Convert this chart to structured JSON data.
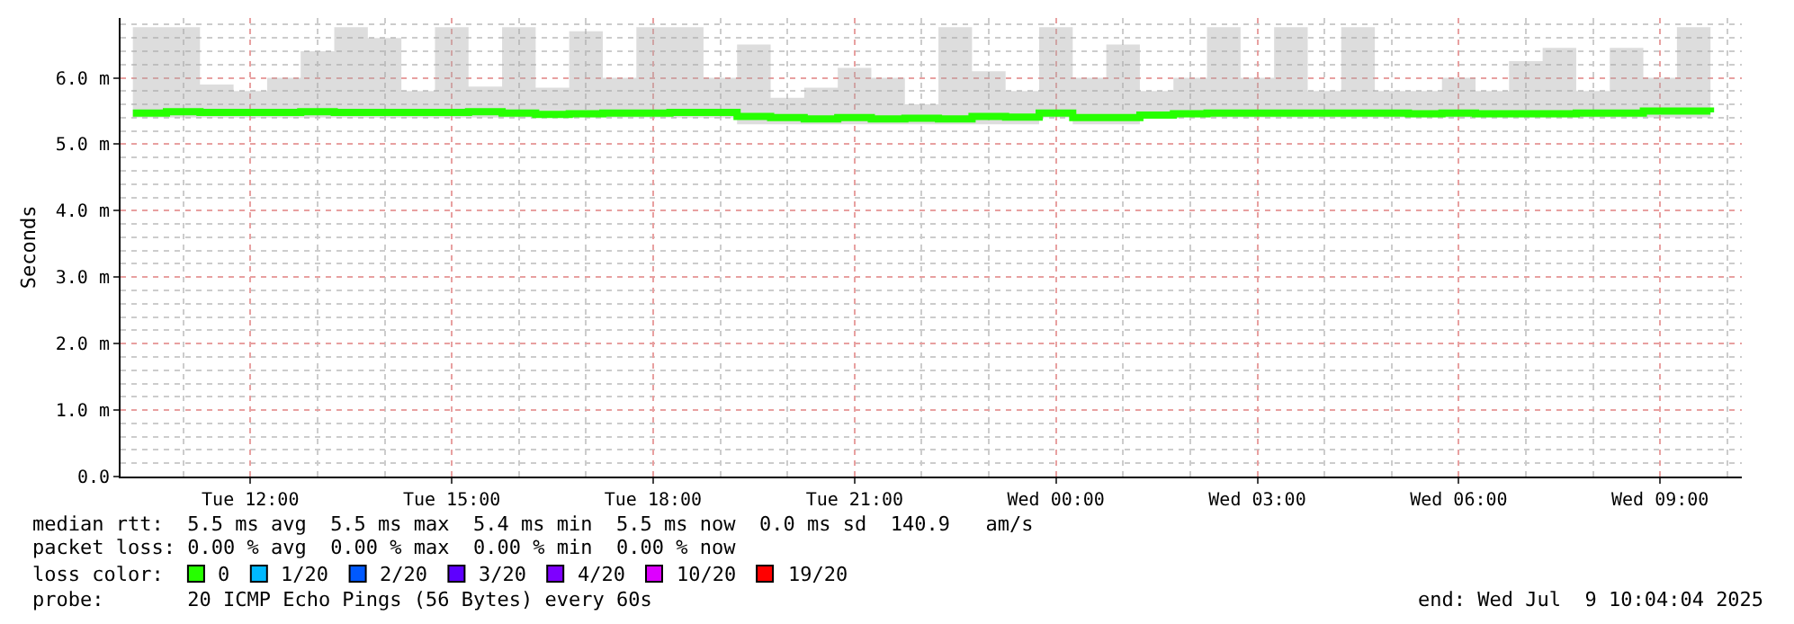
{
  "chart_data": {
    "type": "step",
    "ylabel": "Seconds",
    "legend_title": "loss color:",
    "legend": "bottom",
    "grid": true,
    "x": [
      "2025-07-08T10:15",
      "2025-07-08T10:45",
      "2025-07-08T11:15",
      "2025-07-08T11:45",
      "2025-07-08T12:15",
      "2025-07-08T12:45",
      "2025-07-08T13:15",
      "2025-07-08T13:45",
      "2025-07-08T14:15",
      "2025-07-08T14:45",
      "2025-07-08T15:15",
      "2025-07-08T15:45",
      "2025-07-08T16:15",
      "2025-07-08T16:45",
      "2025-07-08T17:15",
      "2025-07-08T17:45",
      "2025-07-08T18:15",
      "2025-07-08T18:45",
      "2025-07-08T19:15",
      "2025-07-08T19:45",
      "2025-07-08T20:15",
      "2025-07-08T20:45",
      "2025-07-08T21:15",
      "2025-07-08T21:45",
      "2025-07-08T22:15",
      "2025-07-08T22:45",
      "2025-07-08T23:15",
      "2025-07-08T23:45",
      "2025-07-09T00:15",
      "2025-07-09T00:45",
      "2025-07-09T01:15",
      "2025-07-09T01:45",
      "2025-07-09T02:15",
      "2025-07-09T02:45",
      "2025-07-09T03:15",
      "2025-07-09T03:45",
      "2025-07-09T04:15",
      "2025-07-09T04:45",
      "2025-07-09T05:15",
      "2025-07-09T05:45",
      "2025-07-09T06:15",
      "2025-07-09T06:45",
      "2025-07-09T07:15",
      "2025-07-09T07:45",
      "2025-07-09T08:15",
      "2025-07-09T08:45",
      "2025-07-09T09:15",
      "2025-07-09T09:45"
    ],
    "series": [
      {
        "name": "0",
        "color": "#26ff00",
        "values": [
          5.47,
          5.49,
          5.48,
          5.48,
          5.48,
          5.49,
          5.48,
          5.48,
          5.48,
          5.48,
          5.49,
          5.47,
          5.45,
          5.46,
          5.47,
          5.47,
          5.48,
          5.48,
          5.42,
          5.4,
          5.38,
          5.4,
          5.38,
          5.39,
          5.38,
          5.42,
          5.41,
          5.47,
          5.4,
          5.4,
          5.44,
          5.46,
          5.47,
          5.47,
          5.47,
          5.47,
          5.47,
          5.47,
          5.46,
          5.47,
          5.46,
          5.46,
          5.46,
          5.47,
          5.47,
          5.5,
          5.5,
          5.48
        ],
        "lower": [
          5.4,
          5.4,
          5.4,
          5.4,
          5.4,
          5.4,
          5.4,
          5.4,
          5.4,
          5.4,
          5.4,
          5.4,
          5.4,
          5.4,
          5.4,
          5.4,
          5.4,
          5.4,
          5.3,
          5.3,
          5.3,
          5.3,
          5.3,
          5.3,
          5.3,
          5.3,
          5.3,
          5.4,
          5.3,
          5.3,
          5.4,
          5.4,
          5.4,
          5.4,
          5.4,
          5.4,
          5.4,
          5.4,
          5.4,
          5.4,
          5.4,
          5.4,
          5.4,
          5.4,
          5.4,
          5.4,
          5.4,
          5.4
        ],
        "upper": [
          6.76,
          6.76,
          5.9,
          5.8,
          6.0,
          6.4,
          6.76,
          6.6,
          5.8,
          6.76,
          5.87,
          6.76,
          5.85,
          6.7,
          6.0,
          6.76,
          6.76,
          6.0,
          6.5,
          5.7,
          5.85,
          6.15,
          6.0,
          5.6,
          6.76,
          6.1,
          5.8,
          6.76,
          6.0,
          6.5,
          5.8,
          6.0,
          6.76,
          6.0,
          6.76,
          5.8,
          6.76,
          5.8,
          5.8,
          6.0,
          5.8,
          6.25,
          6.45,
          5.8,
          6.45,
          6.0,
          6.76,
          5.8
        ]
      },
      {
        "name": "1/20",
        "color": "#00b8ff",
        "values": [
          null,
          null,
          null,
          null,
          null,
          null,
          null,
          null,
          null,
          null,
          null,
          null,
          null,
          null,
          null,
          null,
          null,
          null,
          null,
          null,
          null,
          null,
          null,
          null,
          null,
          null,
          null,
          null,
          null,
          null,
          null,
          null,
          null,
          null,
          null,
          null,
          null,
          null,
          null,
          null,
          null,
          null,
          null,
          null,
          null,
          null,
          null,
          null
        ]
      },
      {
        "name": "2/20",
        "color": "#0059ff",
        "values": [
          null,
          null,
          null,
          null,
          null,
          null,
          null,
          null,
          null,
          null,
          null,
          null,
          null,
          null,
          null,
          null,
          null,
          null,
          null,
          null,
          null,
          null,
          null,
          null,
          null,
          null,
          null,
          null,
          null,
          null,
          null,
          null,
          null,
          null,
          null,
          null,
          null,
          null,
          null,
          null,
          null,
          null,
          null,
          null,
          null,
          null,
          null,
          null
        ]
      },
      {
        "name": "3/20",
        "color": "#5e00ff",
        "values": [
          null,
          null,
          null,
          null,
          null,
          null,
          null,
          null,
          null,
          null,
          null,
          null,
          null,
          null,
          null,
          null,
          null,
          null,
          null,
          null,
          null,
          null,
          null,
          null,
          null,
          null,
          null,
          null,
          null,
          null,
          null,
          null,
          null,
          null,
          null,
          null,
          null,
          null,
          null,
          null,
          null,
          null,
          null,
          null,
          null,
          null,
          null,
          null
        ]
      },
      {
        "name": "4/20",
        "color": "#7e00ff",
        "values": [
          null,
          null,
          null,
          null,
          null,
          null,
          null,
          null,
          null,
          null,
          null,
          null,
          null,
          null,
          null,
          null,
          null,
          null,
          null,
          null,
          null,
          null,
          null,
          null,
          null,
          null,
          null,
          null,
          null,
          null,
          null,
          null,
          null,
          null,
          null,
          null,
          null,
          null,
          null,
          null,
          null,
          null,
          null,
          null,
          null,
          null,
          null,
          null
        ]
      },
      {
        "name": "10/20",
        "color": "#dd00ff",
        "values": [
          null,
          null,
          null,
          null,
          null,
          null,
          null,
          null,
          null,
          null,
          null,
          null,
          null,
          null,
          null,
          null,
          null,
          null,
          null,
          null,
          null,
          null,
          null,
          null,
          null,
          null,
          null,
          null,
          null,
          null,
          null,
          null,
          null,
          null,
          null,
          null,
          null,
          null,
          null,
          null,
          null,
          null,
          null,
          null,
          null,
          null,
          null,
          null
        ]
      },
      {
        "name": "19/20",
        "color": "#ff0000",
        "values": [
          null,
          null,
          null,
          null,
          null,
          null,
          null,
          null,
          null,
          null,
          null,
          null,
          null,
          null,
          null,
          null,
          null,
          null,
          null,
          null,
          null,
          null,
          null,
          null,
          null,
          null,
          null,
          null,
          null,
          null,
          null,
          null,
          null,
          null,
          null,
          null,
          null,
          null,
          null,
          null,
          null,
          null,
          null,
          null,
          null,
          null,
          null,
          null
        ]
      }
    ],
    "xlim": [
      "2025-07-08T10:04",
      "2025-07-09T10:13"
    ],
    "xticks": [
      {
        "value": "2025-07-08T12:00",
        "label": "Tue 12:00"
      },
      {
        "value": "2025-07-08T15:00",
        "label": "Tue 15:00"
      },
      {
        "value": "2025-07-08T18:00",
        "label": "Tue 18:00"
      },
      {
        "value": "2025-07-08T21:00",
        "label": "Tue 21:00"
      },
      {
        "value": "2025-07-09T00:00",
        "label": "Wed 00:00"
      },
      {
        "value": "2025-07-09T03:00",
        "label": "Wed 03:00"
      },
      {
        "value": "2025-07-09T06:00",
        "label": "Wed 06:00"
      },
      {
        "value": "2025-07-09T09:00",
        "label": "Wed 09:00"
      }
    ],
    "ylim": [
      0,
      6.9
    ],
    "yticks": [
      {
        "value": 0,
        "label": "0.0"
      },
      {
        "value": 1,
        "label": "1.0 m"
      },
      {
        "value": 2,
        "label": "2.0 m"
      },
      {
        "value": 3,
        "label": "3.0 m"
      },
      {
        "value": 4,
        "label": "4.0 m"
      },
      {
        "value": 5,
        "label": "5.0 m"
      },
      {
        "value": 6,
        "label": "6.0 m"
      }
    ],
    "annotations": [
      "median rtt:  5.5 ms avg  5.5 ms max  5.4 ms min  5.5 ms now  0.0 ms sd  140.9   am/s",
      "packet loss: 0.00 % avg  0.00 % max  0.00 % min  0.00 % now",
      "probe:       20 ICMP Echo Pings (56 Bytes) every 60s",
      "end: Wed Jul  9 10:04:04 2025"
    ]
  }
}
